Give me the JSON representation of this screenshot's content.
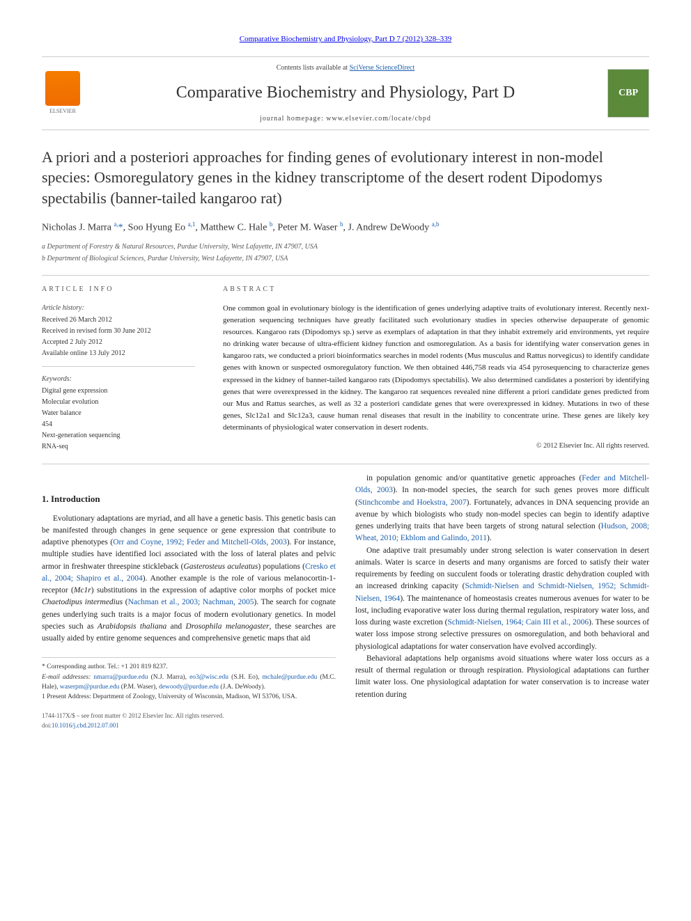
{
  "top_link": "Comparative Biochemistry and Physiology, Part D 7 (2012) 328–339",
  "header": {
    "contents_prefix": "Contents lists available at ",
    "contents_link": "SciVerse ScienceDirect",
    "journal_name": "Comparative Biochemistry and Physiology, Part D",
    "homepage_label": "journal homepage: ",
    "homepage_url": "www.elsevier.com/locate/cbpd",
    "elsevier_label": "ELSEVIER",
    "cbp_label": "CBP"
  },
  "title": "A priori and a posteriori approaches for finding genes of evolutionary interest in non-model species: Osmoregulatory genes in the kidney transcriptome of the desert rodent Dipodomys spectabilis (banner-tailed kangaroo rat)",
  "authors_html": "Nicholas J. Marra <span class='sup'>a,</span><a href='#'>*</a>, Soo Hyung Eo <span class='sup'>a,1</span>, Matthew C. Hale <span class='sup'>b</span>, Peter M. Waser <span class='sup'>b</span>, J. Andrew DeWoody <span class='sup'>a,b</span>",
  "affiliations": [
    "a Department of Forestry & Natural Resources, Purdue University, West Lafayette, IN 47907, USA",
    "b Department of Biological Sciences, Purdue University, West Lafayette, IN 47907, USA"
  ],
  "article_info_label": "ARTICLE INFO",
  "abstract_label": "ABSTRACT",
  "history_label": "Article history:",
  "history": [
    "Received 26 March 2012",
    "Received in revised form 30 June 2012",
    "Accepted 2 July 2012",
    "Available online 13 July 2012"
  ],
  "keywords_label": "Keywords:",
  "keywords": [
    "Digital gene expression",
    "Molecular evolution",
    "Water balance",
    "454",
    "Next-generation sequencing",
    "RNA-seq"
  ],
  "abstract": "One common goal in evolutionary biology is the identification of genes underlying adaptive traits of evolutionary interest. Recently next-generation sequencing techniques have greatly facilitated such evolutionary studies in species otherwise depauperate of genomic resources. Kangaroo rats (Dipodomys sp.) serve as exemplars of adaptation in that they inhabit extremely arid environments, yet require no drinking water because of ultra-efficient kidney function and osmoregulation. As a basis for identifying water conservation genes in kangaroo rats, we conducted a priori bioinformatics searches in model rodents (Mus musculus and Rattus norvegicus) to identify candidate genes with known or suspected osmoregulatory function. We then obtained 446,758 reads via 454 pyrosequencing to characterize genes expressed in the kidney of banner-tailed kangaroo rats (Dipodomys spectabilis). We also determined candidates a posteriori by identifying genes that were overexpressed in the kidney. The kangaroo rat sequences revealed nine different a priori candidate genes predicted from our Mus and Rattus searches, as well as 32 a posteriori candidate genes that were overexpressed in kidney. Mutations in two of these genes, Slc12a1 and Slc12a3, cause human renal diseases that result in the inability to concentrate urine. These genes are likely key determinants of physiological water conservation in desert rodents.",
  "copyright": "© 2012 Elsevier Inc. All rights reserved.",
  "intro_heading": "1. Introduction",
  "intro_p1": "Evolutionary adaptations are myriad, and all have a genetic basis. This genetic basis can be manifested through changes in gene sequence or gene expression that contribute to adaptive phenotypes (<a href='#'>Orr and Coyne, 1992; Feder and Mitchell-Olds, 2003</a>). For instance, multiple studies have identified loci associated with the loss of lateral plates and pelvic armor in freshwater threespine stickleback (<i>Gasterosteus aculeatus</i>) populations (<a href='#'>Cresko et al., 2004; Shapiro et al., 2004</a>). Another example is the role of various melanocortin-1-receptor (<i>Mc1r</i>) substitutions in the expression of adaptive color morphs of pocket mice <i>Chaetodipus intermedius</i> (<a href='#'>Nachman et al., 2003; Nachman, 2005</a>). The search for cognate genes underlying such traits is a major focus of modern evolutionary genetics. In model species such as <i>Arabidopsis thaliana</i> and <i>Drosophila melanogaster</i>, these searches are usually aided by entire genome sequences and comprehensive genetic maps that aid",
  "intro_p2": "in population genomic and/or quantitative genetic approaches (<a href='#'>Feder and Mitchell-Olds, 2003</a>). In non-model species, the search for such genes proves more difficult (<a href='#'>Stinchcombe and Hoekstra, 2007</a>). Fortunately, advances in DNA sequencing provide an avenue by which biologists who study non-model species can begin to identify adaptive genes underlying traits that have been targets of strong natural selection (<a href='#'>Hudson, 2008; Wheat, 2010; Ekblom and Galindo, 2011</a>).",
  "intro_p3": "One adaptive trait presumably under strong selection is water conservation in desert animals. Water is scarce in deserts and many organisms are forced to satisfy their water requirements by feeding on succulent foods or tolerating drastic dehydration coupled with an increased drinking capacity (<a href='#'>Schmidt-Nielsen and Schmidt-Nielsen, 1952; Schmidt-Nielsen, 1964</a>). The maintenance of homeostasis creates numerous avenues for water to be lost, including evaporative water loss during thermal regulation, respiratory water loss, and loss during waste excretion (<a href='#'>Schmidt-Nielsen, 1964; Cain III et al., 2006</a>). These sources of water loss impose strong selective pressures on osmoregulation, and both behavioral and physiological adaptations for water conservation have evolved accordingly.",
  "intro_p4": "Behavioral adaptations help organisms avoid situations where water loss occurs as a result of thermal regulation or through respiration. Physiological adaptations can further limit water loss. One physiological adaptation for water conservation is to increase water retention during",
  "footnotes": {
    "corresp": "* Corresponding author. Tel.: +1 201 819 8237.",
    "emails_label": "E-mail addresses: ",
    "emails_html": "<a href='#'>nmarra@purdue.edu</a> (N.J. Marra), <a href='#'>eo3@wisc.edu</a> (S.H. Eo), <a href='#'>mchale@purdue.edu</a> (M.C. Hale), <a href='#'>waserpm@purdue.edu</a> (P.M. Waser), <a href='#'>dewoody@purdue.edu</a> (J.A. DeWoody).",
    "present": "1 Present Address: Department of Zoology, University of Wisconsin, Madison, WI 53706, USA."
  },
  "footer": {
    "issn": "1744-117X/$ – see front matter © 2012 Elsevier Inc. All rights reserved.",
    "doi_prefix": "doi:",
    "doi": "10.1016/j.cbd.2012.07.001"
  },
  "colors": {
    "link": "#1a5dab",
    "elsevier_orange": "#f57c00",
    "cbp_green": "#5a8a3a",
    "rule": "#cccccc",
    "text": "#222222"
  }
}
